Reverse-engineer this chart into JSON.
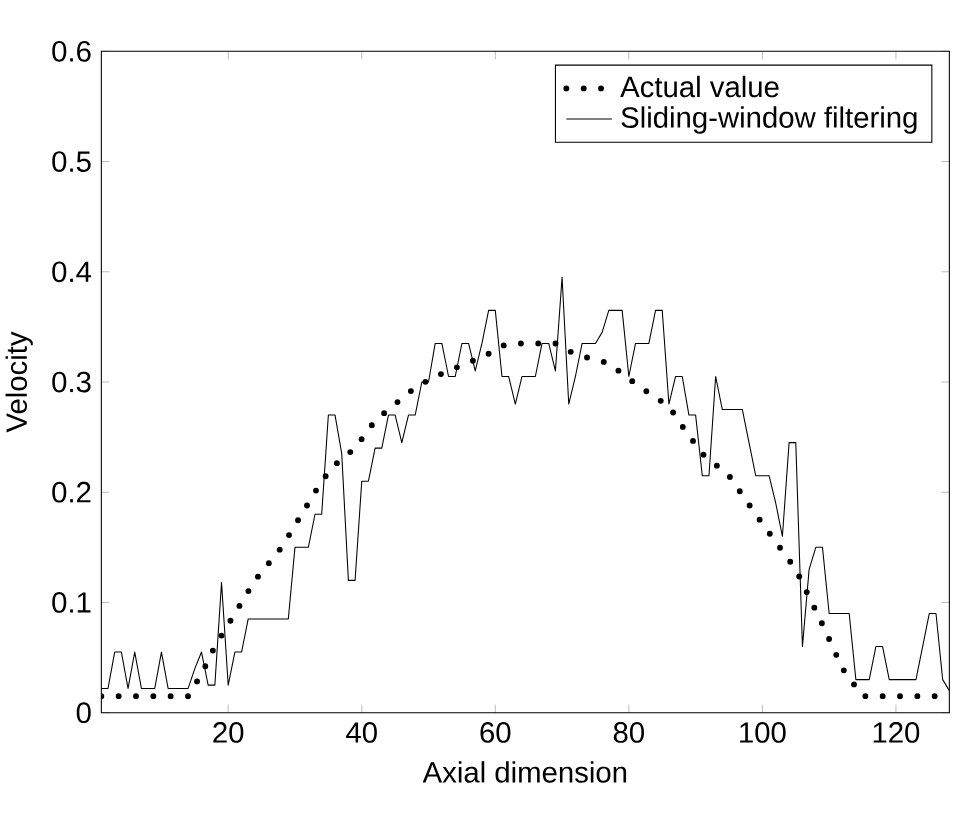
{
  "chart_data": {
    "type": "line",
    "xlabel": "Axial dimension",
    "ylabel": "Velocity",
    "xlim": [
      1,
      128
    ],
    "ylim": [
      0,
      0.6
    ],
    "xticks": [
      20,
      40,
      60,
      80,
      100,
      120
    ],
    "yticks": [
      0,
      0.1,
      0.2,
      0.3,
      0.4,
      0.5,
      0.6
    ],
    "legend": "top right",
    "marker": "none",
    "series": [
      {
        "name": "Actual value",
        "color": "#000000",
        "line_style": "dotted",
        "x": [
          1,
          14,
          16,
          18,
          20,
          22,
          24,
          26,
          28,
          31,
          34,
          36,
          39,
          42,
          44,
          46,
          48,
          51,
          53,
          56,
          58,
          61,
          64,
          69,
          72,
          77,
          80,
          83,
          86,
          88,
          91,
          95,
          99,
          102,
          105,
          107,
          109,
          112,
          115,
          128
        ],
        "values": [
          0.015,
          0.015,
          0.035,
          0.06,
          0.08,
          0.1,
          0.12,
          0.135,
          0.15,
          0.18,
          0.21,
          0.225,
          0.24,
          0.265,
          0.275,
          0.285,
          0.295,
          0.305,
          0.31,
          0.318,
          0.322,
          0.333,
          0.335,
          0.335,
          0.325,
          0.317,
          0.303,
          0.29,
          0.278,
          0.26,
          0.235,
          0.215,
          0.18,
          0.155,
          0.13,
          0.105,
          0.08,
          0.04,
          0.015,
          0.015
        ]
      },
      {
        "name": "Sliding-window filtering",
        "color": "#000000",
        "line_style": "solid",
        "x": [
          1,
          2,
          3,
          4,
          5,
          6,
          7,
          8,
          9,
          10,
          11,
          12,
          13,
          14,
          15,
          16,
          17,
          18,
          19,
          20,
          21,
          22,
          23,
          29,
          30,
          32,
          33,
          34,
          35,
          36,
          37,
          38,
          39,
          40,
          41,
          42,
          43,
          44,
          45,
          46,
          47,
          48,
          49,
          50,
          51,
          52,
          53,
          54,
          55,
          56,
          57,
          58,
          59,
          60,
          61,
          62,
          63,
          64,
          66,
          67,
          68,
          69,
          70,
          71,
          72,
          73,
          75,
          76,
          77,
          79,
          80,
          81,
          83,
          84,
          85,
          86,
          87,
          88,
          89,
          90,
          91,
          92,
          93,
          94,
          97,
          98,
          99,
          101,
          102,
          103,
          104,
          105,
          106,
          107,
          108,
          109,
          110,
          113,
          114,
          116,
          117,
          118,
          119,
          123,
          124,
          125,
          126,
          127,
          128
        ],
        "values": [
          0.022,
          0.022,
          0.055,
          0.055,
          0.022,
          0.055,
          0.022,
          0.022,
          0.022,
          0.055,
          0.022,
          0.022,
          0.022,
          0.022,
          0.04,
          0.055,
          0.025,
          0.025,
          0.118,
          0.025,
          0.055,
          0.055,
          0.085,
          0.085,
          0.15,
          0.15,
          0.18,
          0.18,
          0.27,
          0.27,
          0.235,
          0.12,
          0.12,
          0.21,
          0.21,
          0.24,
          0.24,
          0.27,
          0.27,
          0.245,
          0.27,
          0.27,
          0.3,
          0.3,
          0.335,
          0.335,
          0.305,
          0.305,
          0.335,
          0.335,
          0.31,
          0.335,
          0.365,
          0.365,
          0.305,
          0.305,
          0.28,
          0.305,
          0.305,
          0.335,
          0.335,
          0.31,
          0.395,
          0.28,
          0.305,
          0.335,
          0.335,
          0.345,
          0.365,
          0.365,
          0.305,
          0.335,
          0.335,
          0.365,
          0.365,
          0.28,
          0.305,
          0.305,
          0.27,
          0.27,
          0.215,
          0.215,
          0.305,
          0.275,
          0.275,
          0.245,
          0.215,
          0.215,
          0.19,
          0.16,
          0.245,
          0.245,
          0.06,
          0.13,
          0.15,
          0.15,
          0.09,
          0.09,
          0.03,
          0.03,
          0.06,
          0.06,
          0.03,
          0.03,
          0.06,
          0.09,
          0.09,
          0.03,
          0.02
        ]
      }
    ]
  }
}
